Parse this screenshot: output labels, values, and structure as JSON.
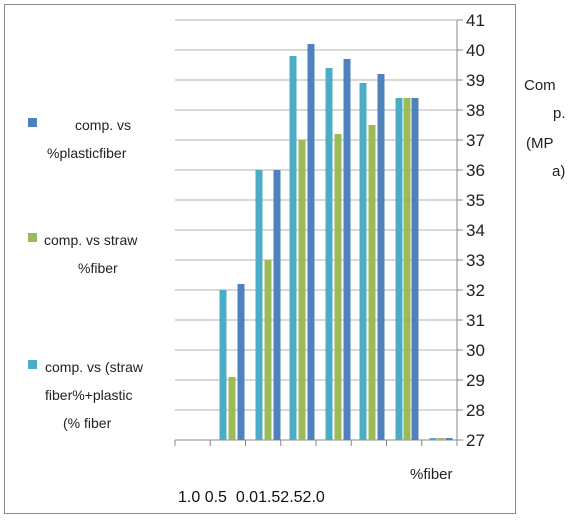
{
  "chart_data": {
    "type": "bar",
    "categories": [
      "1.0",
      "0.5",
      "0.0",
      "1.5",
      "2.5",
      "2.0"
    ],
    "category_axis_label": "1.0 0.5  0.01.52.52.0",
    "xlabel": "%fiber",
    "ylabel_lines": [
      "Com",
      "p.",
      "(MP",
      "a)"
    ],
    "ylim": [
      27,
      41
    ],
    "yticks": [
      27,
      28,
      29,
      30,
      31,
      32,
      33,
      34,
      35,
      36,
      37,
      38,
      39,
      40,
      41
    ],
    "yaxis_position": "right",
    "grid": true,
    "legend_position": "left",
    "legend_lines": [
      [
        "comp. vs",
        "%plasticfiber"
      ],
      [
        "comp. vs straw",
        "%fiber"
      ],
      [
        "comp. vs (straw",
        "fiber%+plastic",
        "(% fiber"
      ]
    ],
    "series": [
      {
        "values": [
          null,
          32.0,
          36.0,
          39.8,
          39.4,
          38.9
        ],
        "color": "#4bacc6"
      },
      {
        "values": [
          null,
          29.1,
          33.0,
          37.0,
          37.2,
          37.5
        ],
        "color": "#9bbb59"
      },
      {
        "values": [
          null,
          32.2,
          36.0,
          40.2,
          39.7,
          39.2
        ],
        "color": "#4f81bd"
      }
    ],
    "extra_bars": [
      {
        "values": [
          38.4,
          38.4,
          38.4
        ],
        "colors": [
          "#4bacc6",
          "#9bbb59",
          "#4f81bd"
        ]
      },
      {
        "values": [
          27.0,
          27.0,
          27.0
        ],
        "colors": [
          "#4bacc6",
          "#9bbb59",
          "#4f81bd"
        ]
      }
    ]
  }
}
